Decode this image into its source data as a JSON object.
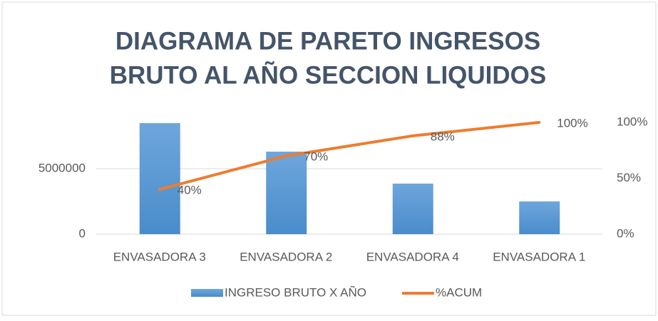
{
  "chart_data": {
    "type": "bar_line",
    "title": [
      "DIAGRAMA DE PARETO  INGRESOS",
      "BRUTO AL AÑO SECCION LIQUIDOS"
    ],
    "categories": [
      "ENVASADORA 3",
      "ENVASADORA 2",
      "ENVASADORA 4",
      "ENVASADORA 1"
    ],
    "series": [
      {
        "name": "INGRESO BRUTO X AÑO",
        "type": "bar",
        "color": "#5b9bd5",
        "values": [
          8480000,
          6300000,
          3860000,
          2500000
        ]
      },
      {
        "name": "%ACUM",
        "type": "line",
        "axis": "y2",
        "color": "#ed7d31",
        "values": [
          40,
          70,
          88,
          100
        ],
        "value_labels": [
          "40%",
          "70%",
          "88%",
          "100%"
        ]
      }
    ],
    "ylim": [
      0,
      8530000
    ],
    "yticks": [
      0,
      5000000
    ],
    "y2lim": [
      0,
      100
    ],
    "y2ticks": [
      {
        "value": 0,
        "label": "0%"
      },
      {
        "value": 50,
        "label": "50%"
      },
      {
        "value": 100,
        "label": "100%"
      }
    ],
    "grid": true,
    "legend": "bottom"
  }
}
